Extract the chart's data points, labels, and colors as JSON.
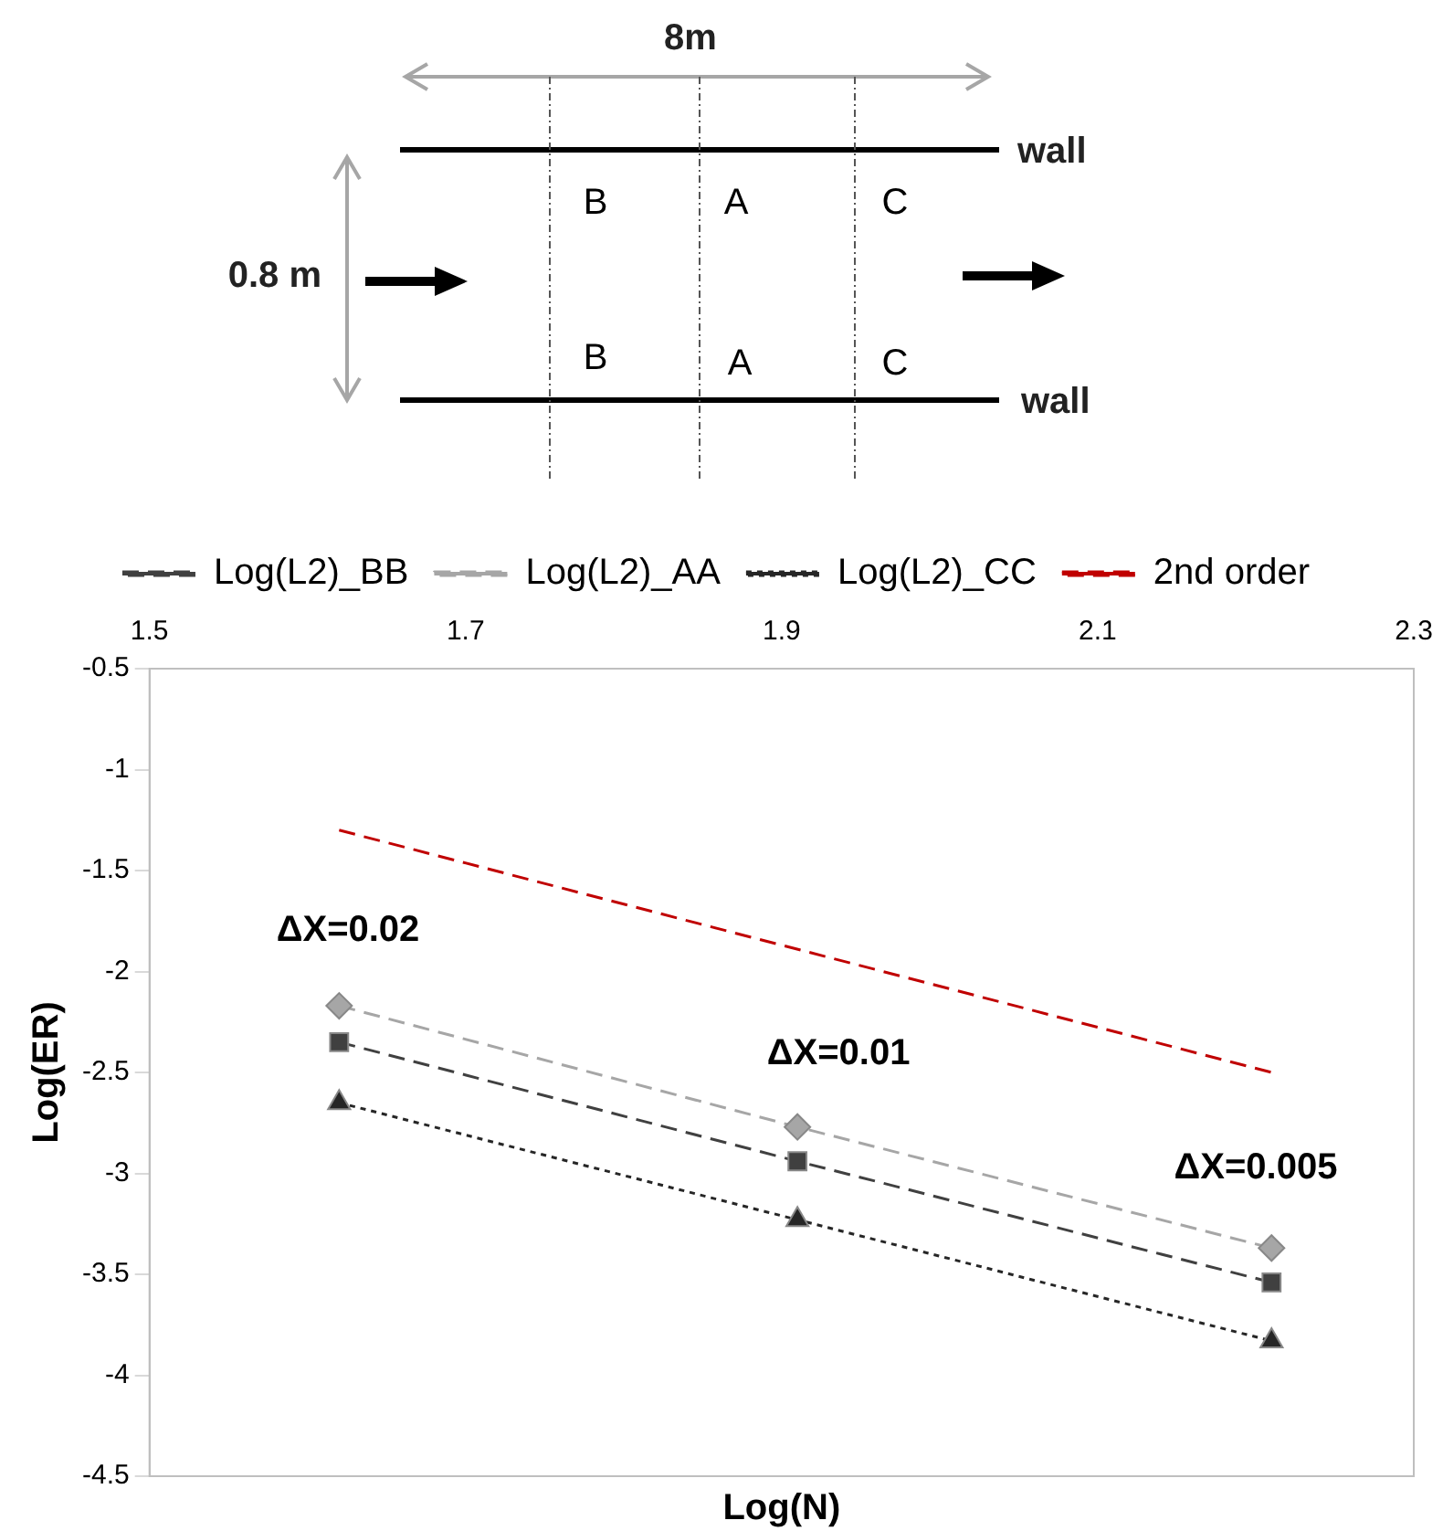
{
  "chart_data": {
    "type": "line",
    "xlabel": "Log(N)",
    "ylabel": "Log(ER)",
    "x": [
      1.62,
      1.91,
      2.21
    ],
    "series": [
      {
        "name": "Log(L2)_BB",
        "color": "#404040",
        "values": [
          -2.35,
          -2.94,
          -3.54
        ],
        "marker": "square",
        "line_style": "dashed"
      },
      {
        "name": "Log(L2)_AA",
        "color": "#a6a6a6",
        "values": [
          -2.17,
          -2.77,
          -3.37
        ],
        "marker": "diamond",
        "line_style": "dashed"
      },
      {
        "name": "Log(L2)_CC",
        "color": "#262626",
        "values": [
          -2.65,
          -3.23,
          -3.83
        ],
        "marker": "triangle",
        "line_style": "dotted"
      },
      {
        "name": "2nd order",
        "color": "#c00000",
        "x": [
          1.62,
          2.21
        ],
        "values": [
          -1.3,
          -2.5
        ],
        "marker": "none",
        "line_style": "dashed"
      }
    ],
    "xlim": [
      1.5,
      2.3
    ],
    "xticks": [
      1.5,
      1.7,
      1.9,
      2.1,
      2.3
    ],
    "ylim": [
      -4.5,
      -0.5
    ],
    "yticks": [
      -4.5,
      -4,
      -3.5,
      -3,
      -2.5,
      -2,
      -1.5,
      -1,
      -0.5
    ],
    "grid": false,
    "legend": "top",
    "annotations": [
      "ΔX=0.02",
      "ΔX=0.01",
      "ΔX=0.005",
      "8m",
      "0.8 m",
      "wall",
      "wall",
      "B",
      "A",
      "C",
      "B",
      "A",
      "C"
    ]
  }
}
